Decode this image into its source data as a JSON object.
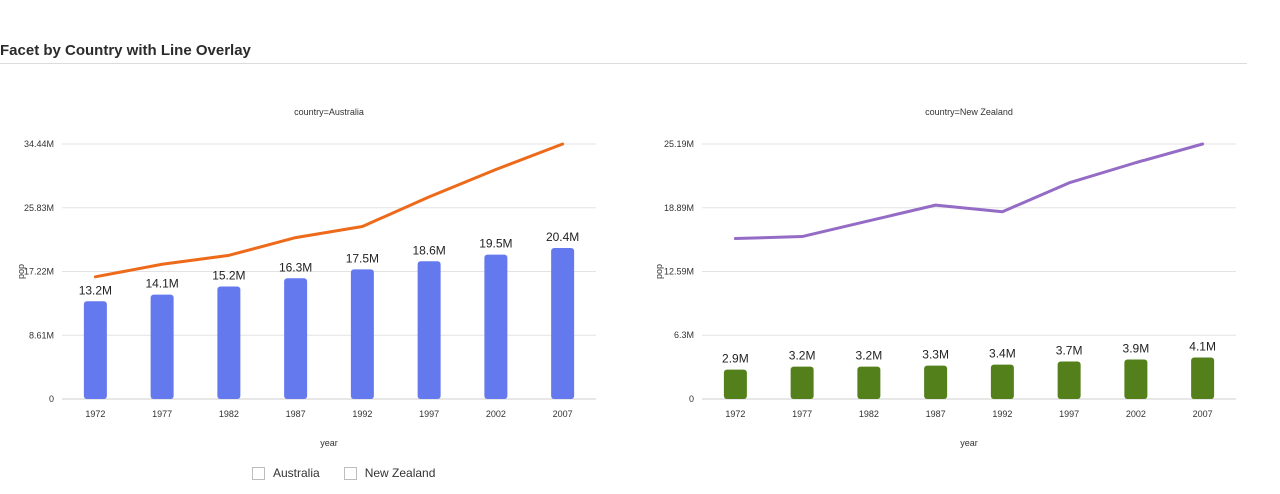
{
  "page": {
    "title": "Facet by Country with Line Overlay"
  },
  "chart_data": [
    {
      "type": "bar",
      "facet_label": "country=Australia",
      "xlabel": "year",
      "ylabel": "pop",
      "categories": [
        "1972",
        "1977",
        "1982",
        "1987",
        "1992",
        "1997",
        "2002",
        "2007"
      ],
      "ylim": [
        0,
        34440000
      ],
      "yticks": [
        0,
        8610000,
        17220000,
        25830000,
        34440000
      ],
      "ytick_labels": [
        "0",
        "8.61M",
        "17.22M",
        "25.83M",
        "34.44M"
      ],
      "grid": true,
      "bar_color": "#6579ee",
      "line_color": "#ee6a1b",
      "bars": {
        "values": [
          13200000,
          14100000,
          15200000,
          16300000,
          17500000,
          18600000,
          19500000,
          20400000
        ],
        "labels": [
          "13.2M",
          "14.1M",
          "15.2M",
          "16.3M",
          "17.5M",
          "18.6M",
          "19.5M",
          "20.4M"
        ]
      },
      "line": {
        "values": [
          16500000,
          18200000,
          19400000,
          21800000,
          23300000,
          27300000,
          31000000,
          34440000
        ]
      }
    },
    {
      "type": "bar",
      "facet_label": "country=New Zealand",
      "xlabel": "year",
      "ylabel": "pop",
      "categories": [
        "1972",
        "1977",
        "1982",
        "1987",
        "1992",
        "1997",
        "2002",
        "2007"
      ],
      "ylim": [
        0,
        25190000
      ],
      "yticks": [
        0,
        6300000,
        12590000,
        18890000,
        25190000
      ],
      "ytick_labels": [
        "0",
        "6.3M",
        "12.59M",
        "18.89M",
        "25.19M"
      ],
      "grid": true,
      "bar_color": "#53801b",
      "line_color": "#946cc6",
      "bars": {
        "values": [
          2900000,
          3200000,
          3200000,
          3300000,
          3400000,
          3700000,
          3900000,
          4100000
        ],
        "labels": [
          "2.9M",
          "3.2M",
          "3.2M",
          "3.3M",
          "3.4M",
          "3.7M",
          "3.9M",
          "4.1M"
        ]
      },
      "line": {
        "values": [
          15850000,
          16050000,
          17600000,
          19150000,
          18500000,
          21350000,
          23350000,
          25190000
        ]
      }
    }
  ],
  "legend": {
    "placement": "bottom",
    "items": [
      {
        "label": "Australia"
      },
      {
        "label": "New Zealand"
      }
    ]
  }
}
